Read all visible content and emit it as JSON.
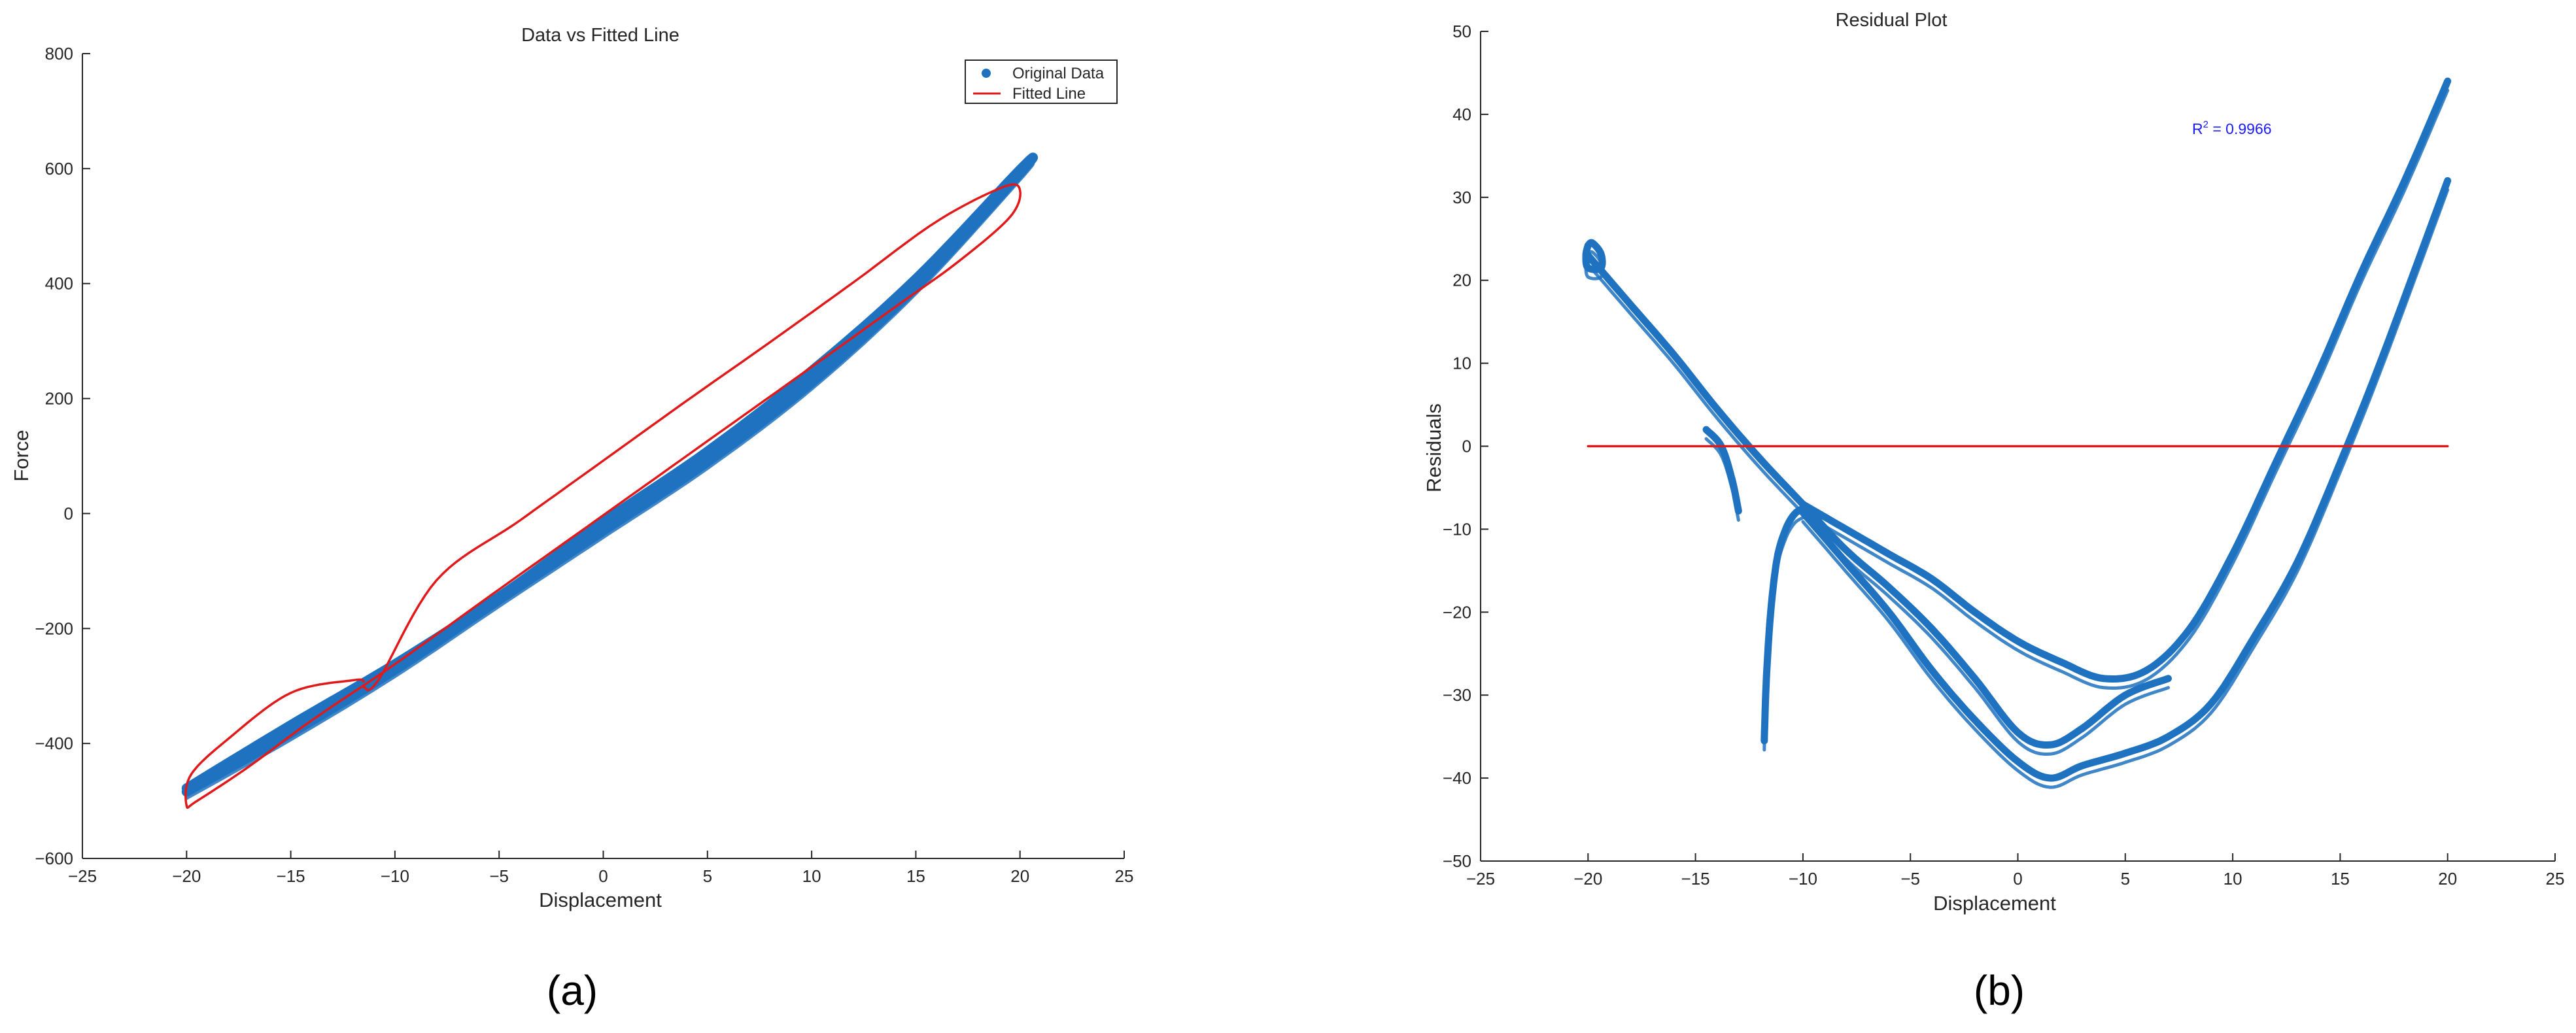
{
  "colors": {
    "data": "#1f72bf",
    "fit": "#e01a1a",
    "axis": "#262626",
    "annotation": "#1a1aff"
  },
  "figure": {
    "label_a": "(a)",
    "label_b": "(b)"
  },
  "chart_data": [
    {
      "type": "scatter",
      "title": "Data vs Fitted Line",
      "xlabel": "Displacement",
      "ylabel": "Force",
      "xlim": [
        -25,
        25
      ],
      "ylim": [
        -600,
        800
      ],
      "xticks": [
        -25,
        -20,
        -15,
        -10,
        -5,
        0,
        5,
        10,
        15,
        20,
        25
      ],
      "yticks": [
        -600,
        -400,
        -200,
        0,
        200,
        400,
        600,
        800
      ],
      "xtick_labels": [
        "−25",
        "−20",
        "−15",
        "−10",
        "−5",
        "0",
        "5",
        "10",
        "15",
        "20",
        "25"
      ],
      "ytick_labels": [
        "−600",
        "−400",
        "−200",
        "0",
        "200",
        "400",
        "600",
        "800"
      ],
      "grid": false,
      "legend": "top-right",
      "series": [
        {
          "name": "Original Data",
          "style": "markers",
          "description_points": "hysteresis loop, upper branch then lower branch",
          "x": [
            -20,
            -15,
            -10,
            -5,
            0,
            5,
            10,
            15,
            20,
            20,
            15,
            10,
            5,
            0,
            -5,
            -10,
            -15,
            -20
          ],
          "y": [
            -478,
            -368,
            -262,
            -145,
            -15,
            108,
            248,
            408,
            598,
            592,
            394,
            228,
            90,
            -30,
            -150,
            -272,
            -382,
            -484
          ]
        },
        {
          "name": "Fitted Line",
          "style": "line",
          "x": [
            -11.5,
            -12,
            -15,
            -18,
            -19.8,
            -20,
            -19.5,
            -17,
            -14,
            -10,
            -5,
            0,
            5,
            10,
            14,
            17,
            19.5,
            20,
            19.2,
            16,
            12,
            8,
            4,
            0,
            -4,
            -8,
            -10.8,
            -11.5
          ],
          "y": [
            -292,
            -290,
            -312,
            -392,
            -455,
            -508,
            -500,
            -440,
            -360,
            -262,
            -132,
            -3,
            126,
            255,
            359,
            437,
            515,
            562,
            568,
            508,
            402,
            298,
            196,
            92,
            -12,
            -116,
            -290,
            -302
          ]
        }
      ]
    },
    {
      "type": "scatter",
      "title": "Residual Plot",
      "xlabel": "Displacement",
      "ylabel": "Residuals",
      "xlim": [
        -25,
        25
      ],
      "ylim": [
        -50,
        50
      ],
      "xticks": [
        -25,
        -20,
        -15,
        -10,
        -5,
        0,
        5,
        10,
        15,
        20,
        25
      ],
      "yticks": [
        -50,
        -40,
        -30,
        -20,
        -10,
        0,
        10,
        20,
        30,
        40,
        50
      ],
      "xtick_labels": [
        "−25",
        "−20",
        "−15",
        "−10",
        "−5",
        "0",
        "5",
        "10",
        "15",
        "20",
        "25"
      ],
      "ytick_labels": [
        "−50",
        "−40",
        "−30",
        "−20",
        "−10",
        "0",
        "10",
        "20",
        "30",
        "40",
        "50"
      ],
      "grid": false,
      "annotation": {
        "base": "R",
        "sup": "2",
        "rest": " = 0.9966"
      },
      "series": [
        {
          "style": "markers",
          "segment": "upper-left",
          "x": [
            -20,
            -19.8,
            -19.4,
            -19.4,
            -20,
            -20.1,
            -20
          ],
          "y": [
            24.2,
            24.5,
            23.2,
            21.5,
            21.5,
            23,
            24.2
          ]
        },
        {
          "style": "markers",
          "segment": "descending band",
          "x": [
            -20,
            -18,
            -16,
            -14,
            -12,
            -10,
            -8,
            -6,
            -4,
            -2,
            0,
            1.5,
            3,
            5,
            7
          ],
          "y": [
            23,
            17,
            11,
            4.5,
            -1.5,
            -7,
            -12.5,
            -17,
            -22,
            -28,
            -34.5,
            -36,
            -34,
            -30,
            -28
          ]
        },
        {
          "style": "markers",
          "segment": "lower envelope",
          "x": [
            -10,
            -8,
            -6,
            -4,
            -2,
            0,
            1.5,
            3,
            5,
            7,
            9,
            11,
            13,
            15,
            17,
            20
          ],
          "y": [
            -8,
            -14,
            -20,
            -27,
            -33,
            -38,
            -40,
            -38.5,
            -37,
            -35,
            -31,
            -23,
            -14,
            -2,
            11,
            32
          ]
        },
        {
          "style": "markers",
          "segment": "upper envelope",
          "x": [
            -10,
            -8,
            -6,
            -4,
            -2,
            0,
            2,
            4,
            6,
            8,
            10,
            12,
            14,
            16,
            18,
            20
          ],
          "y": [
            -7,
            -10,
            -13,
            -16,
            -20,
            -23.5,
            -26,
            -28,
            -27,
            -22,
            -13,
            -2,
            9,
            21,
            32,
            44
          ]
        },
        {
          "style": "markers",
          "segment": "start transient",
          "x": [
            -11.8,
            -11.7,
            -11.5,
            -11.2,
            -10.8,
            -10.4,
            -10
          ],
          "y": [
            -35.5,
            -28,
            -20,
            -13.5,
            -10,
            -8.2,
            -7.5
          ]
        },
        {
          "style": "markers",
          "segment": "left tail",
          "x": [
            -14.5,
            -13.8,
            -13.3,
            -13
          ],
          "y": [
            2,
            0,
            -4,
            -7.8
          ]
        },
        {
          "style": "line",
          "segment": "zero reference",
          "x": [
            -20,
            20
          ],
          "y": [
            0,
            0
          ]
        }
      ]
    }
  ]
}
